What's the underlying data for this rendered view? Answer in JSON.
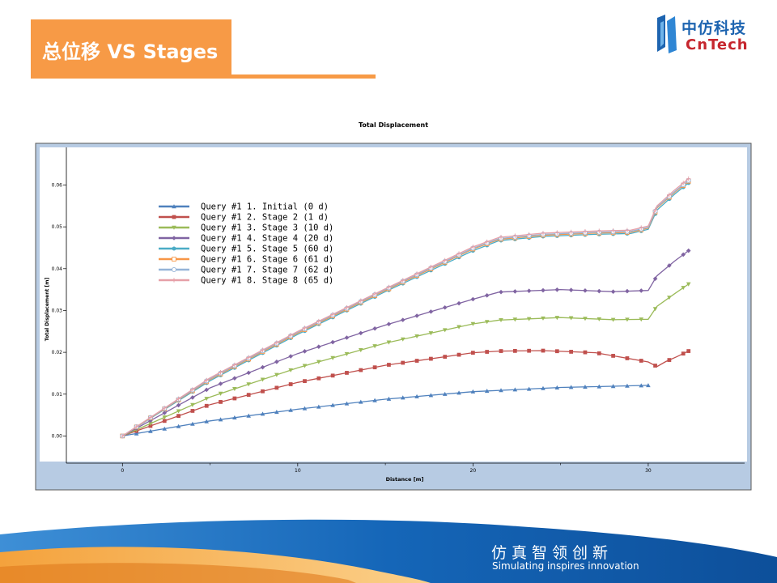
{
  "slide": {
    "title": "总位移 VS Stages",
    "logo_cn": "中仿科技",
    "logo_en": "CnTech",
    "slogan_cn": "仿真智领创新",
    "slogan_en": "Simulating inspires innovation"
  },
  "colors": {
    "accent_orange": "#f79a46",
    "brand_blue": "#1d64b0",
    "brand_red": "#c6262e",
    "chart_frame": "#b7cbe3"
  },
  "chart_data": {
    "type": "line",
    "title": "Total Displacement",
    "xlabel": "Distance [m]",
    "ylabel": "Total Displacement [m]",
    "xlim": [
      -3.2,
      35.5
    ],
    "ylim": [
      -0.0065,
      0.069
    ],
    "xticks": [
      "0",
      "10",
      "20",
      "30"
    ],
    "yticks": [
      "0.00",
      "0.01",
      "0.02",
      "0.03",
      "0.04",
      "0.05",
      "0.06"
    ],
    "grid": false,
    "legend": "upper-left",
    "series": [
      {
        "name": "Query #1 1. Initial (0 d)",
        "color": "#4f81bd",
        "marker": "triangle-up",
        "x": [
          0,
          5,
          10,
          15,
          20,
          25,
          28,
          30
        ],
        "y": [
          0,
          0.0036,
          0.0064,
          0.0088,
          0.0106,
          0.0116,
          0.0119,
          0.0121
        ]
      },
      {
        "name": "Query #1 2. Stage 2 (1 d)",
        "color": "#c0504d",
        "marker": "square",
        "x": [
          0,
          5,
          10,
          15,
          20,
          21.5,
          24,
          27,
          30,
          30.5,
          31,
          31.6,
          32.3
        ],
        "y": [
          0,
          0.0075,
          0.0128,
          0.0169,
          0.0199,
          0.0203,
          0.0204,
          0.0199,
          0.0177,
          0.0166,
          0.0178,
          0.0189,
          0.0203
        ]
      },
      {
        "name": "Query #1 3. Stage 3 (10 d)",
        "color": "#9bbb59",
        "marker": "triangle-down",
        "x": [
          0,
          5,
          10,
          15,
          20,
          21.5,
          25,
          28,
          30,
          30.5,
          31.5,
          32.3
        ],
        "y": [
          0,
          0.0093,
          0.0163,
          0.0222,
          0.0268,
          0.0277,
          0.0283,
          0.0278,
          0.0279,
          0.031,
          0.034,
          0.0363
        ]
      },
      {
        "name": "Query #1 4. Stage 4 (20 d)",
        "color": "#8064a2",
        "marker": "diamond",
        "x": [
          0,
          5,
          10,
          15,
          20,
          21.5,
          25,
          28,
          30,
          30.5,
          31.5,
          32.3
        ],
        "y": [
          0,
          0.0115,
          0.0197,
          0.0265,
          0.0327,
          0.0344,
          0.035,
          0.0345,
          0.0348,
          0.0383,
          0.0418,
          0.0443
        ]
      },
      {
        "name": "Query #1 5. Stage 5 (60 d)",
        "color": "#4bacc6",
        "marker": "circle",
        "x": [
          0,
          5,
          10,
          15,
          20,
          21.5,
          24,
          27,
          29,
          30,
          30.5,
          31.5,
          32.3
        ],
        "y": [
          0,
          0.0132,
          0.0243,
          0.0345,
          0.0443,
          0.0467,
          0.0477,
          0.0482,
          0.0484,
          0.0494,
          0.054,
          0.0578,
          0.0605
        ]
      },
      {
        "name": "Query #1 6. Stage 6 (61 d)",
        "color": "#f79646",
        "marker": "square-open",
        "x": [
          0,
          5,
          10,
          15,
          20,
          21.5,
          24,
          27,
          29,
          30,
          30.5,
          31.5,
          32.3
        ],
        "y": [
          0,
          0.0135,
          0.0246,
          0.0348,
          0.0447,
          0.047,
          0.048,
          0.0485,
          0.0487,
          0.0497,
          0.0545,
          0.0582,
          0.0609
        ]
      },
      {
        "name": "Query #1 7. Stage 7 (62 d)",
        "color": "#95b3d7",
        "marker": "circle-open",
        "x": [
          0,
          5,
          10,
          15,
          20,
          21.5,
          24,
          27,
          29,
          30,
          30.5,
          31.5,
          32.3
        ],
        "y": [
          0,
          0.0137,
          0.0248,
          0.035,
          0.0449,
          0.0472,
          0.0482,
          0.0487,
          0.0489,
          0.0499,
          0.0547,
          0.0584,
          0.0611
        ]
      },
      {
        "name": "Query #1 8. Stage 8 (65 d)",
        "color": "#e6a0a8",
        "marker": "plus",
        "x": [
          0,
          5,
          10,
          15,
          20,
          21.5,
          24,
          27,
          29,
          30,
          30.5,
          31.5,
          32.3
        ],
        "y": [
          0,
          0.0139,
          0.025,
          0.0352,
          0.0452,
          0.0475,
          0.0485,
          0.049,
          0.0492,
          0.0502,
          0.055,
          0.0588,
          0.0615
        ]
      }
    ]
  }
}
